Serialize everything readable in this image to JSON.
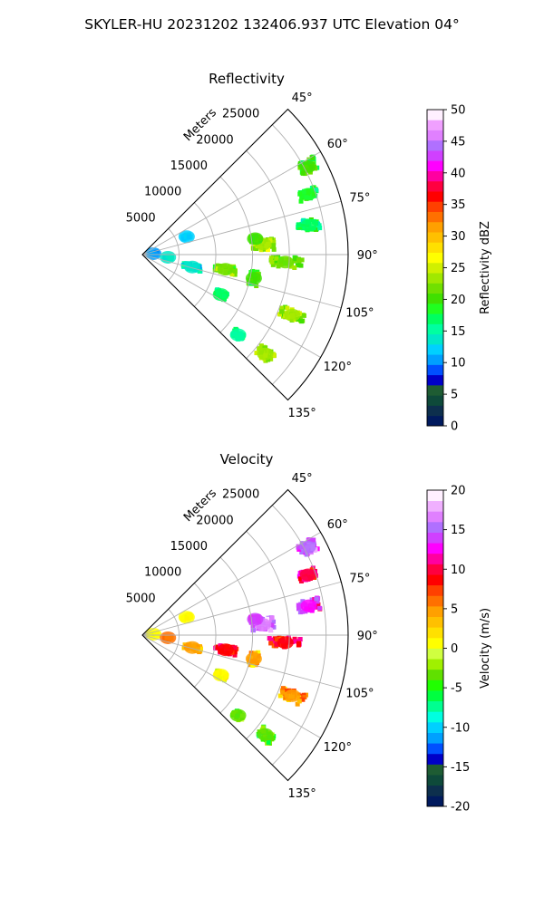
{
  "figure": {
    "title": "SKYLER-HU  20231202  132406.937 UTC Elevation 04°"
  },
  "chart_data": [
    {
      "type": "heatmap",
      "title": "Reflectivity",
      "radial_axis_label": "Meters",
      "radial_ticks": [
        5000,
        10000,
        15000,
        20000,
        25000
      ],
      "range_max_m": 28000,
      "azimuth_ticks": [
        "45°",
        "60°",
        "75°",
        "90°",
        "105°",
        "120°",
        "135°"
      ],
      "azimuth_range_deg": [
        45,
        135
      ],
      "grid": true,
      "colorbar": {
        "label": "Reflectivity dBZ",
        "min": 0,
        "max": 50,
        "ticks": [
          0,
          5,
          10,
          15,
          20,
          25,
          30,
          35,
          40,
          45,
          50
        ],
        "colors": [
          "#001a5e",
          "#0d2f4d",
          "#0e4a3a",
          "#1e5c33",
          "#0000c8",
          "#0050ff",
          "#00a0ff",
          "#00d0ff",
          "#00e8c8",
          "#00ffa0",
          "#00ff60",
          "#20ff20",
          "#40e000",
          "#70e000",
          "#a0e800",
          "#d0f000",
          "#ffff00",
          "#ffe000",
          "#ffc000",
          "#ffa000",
          "#ff7000",
          "#ff4000",
          "#ff0000",
          "#ff0040",
          "#ff00a0",
          "#ff00ff",
          "#d040ff",
          "#b070ff",
          "#e080ff",
          "#f0a0ff",
          "#fff0ff"
        ]
      },
      "echoes": [
        {
          "az": 62,
          "r": 25500,
          "dr": 2500,
          "daz": 4,
          "value": 20
        },
        {
          "az": 70,
          "r": 24000,
          "dr": 2500,
          "daz": 3,
          "value": 18
        },
        {
          "az": 80,
          "r": 23000,
          "dr": 3000,
          "daz": 4,
          "value": 17
        },
        {
          "az": 85,
          "r": 16500,
          "dr": 3000,
          "daz": 6,
          "value": 24
        },
        {
          "az": 82,
          "r": 15500,
          "dr": 1200,
          "daz": 3,
          "value": 20
        },
        {
          "az": 93,
          "r": 19500,
          "dr": 4500,
          "daz": 4,
          "value": 21
        },
        {
          "az": 100,
          "r": 11500,
          "dr": 3000,
          "daz": 5,
          "value": 22
        },
        {
          "az": 102,
          "r": 15500,
          "dr": 1200,
          "daz": 7,
          "value": 20
        },
        {
          "az": 112,
          "r": 22000,
          "dr": 3500,
          "daz": 4,
          "value": 23
        },
        {
          "az": 117,
          "r": 12000,
          "dr": 1500,
          "daz": 4,
          "value": 17
        },
        {
          "az": 129,
          "r": 21500,
          "dr": 2500,
          "daz": 4,
          "value": 24
        },
        {
          "az": 130,
          "r": 17000,
          "dr": 1500,
          "daz": 3,
          "value": 16
        },
        {
          "az": 104,
          "r": 7000,
          "dr": 2500,
          "daz": 6,
          "value": 13
        },
        {
          "az": 68,
          "r": 6500,
          "dr": 1200,
          "daz": 4,
          "value": 12
        },
        {
          "az": 85,
          "r": 1500,
          "dr": 1200,
          "daz": 10,
          "value": 10
        },
        {
          "az": 96,
          "r": 3500,
          "dr": 1000,
          "daz": 6,
          "value": 13
        }
      ]
    },
    {
      "type": "heatmap",
      "title": "Velocity",
      "radial_axis_label": "Meters",
      "radial_ticks": [
        5000,
        10000,
        15000,
        20000,
        25000
      ],
      "range_max_m": 28000,
      "azimuth_ticks": [
        "45°",
        "60°",
        "75°",
        "90°",
        "105°",
        "120°",
        "135°"
      ],
      "azimuth_range_deg": [
        45,
        135
      ],
      "grid": true,
      "colorbar": {
        "label": "Velocity (m/s)",
        "min": -20,
        "max": 20,
        "ticks": [
          -20,
          -15,
          -10,
          -5,
          0,
          5,
          10,
          15,
          20
        ],
        "colors": [
          "#001a5e",
          "#0d2f4d",
          "#0e4a3a",
          "#1e5c33",
          "#0000c8",
          "#0050ff",
          "#00a0ff",
          "#00d0ff",
          "#00ffe0",
          "#00ff90",
          "#00ff40",
          "#20ff00",
          "#60e000",
          "#a0f000",
          "#d0ff40",
          "#ffff00",
          "#ffe000",
          "#ffc000",
          "#ffa000",
          "#ff7000",
          "#ff4000",
          "#ff0000",
          "#ff0040",
          "#ff00a0",
          "#ff00ff",
          "#d040ff",
          "#b070ff",
          "#e080ff",
          "#f0b0ff",
          "#fff0ff"
        ]
      },
      "echoes": [
        {
          "az": 62,
          "r": 25500,
          "dr": 2500,
          "daz": 4,
          "value": 15
        },
        {
          "az": 70,
          "r": 24000,
          "dr": 2500,
          "daz": 3,
          "value": 10
        },
        {
          "az": 80,
          "r": 23000,
          "dr": 3000,
          "daz": 4,
          "value": 13
        },
        {
          "az": 85,
          "r": 16500,
          "dr": 3000,
          "daz": 6,
          "value": 16
        },
        {
          "az": 82,
          "r": 15500,
          "dr": 1200,
          "daz": 3,
          "value": 14
        },
        {
          "az": 93,
          "r": 19500,
          "dr": 4500,
          "daz": 4,
          "value": 9
        },
        {
          "az": 100,
          "r": 11500,
          "dr": 3000,
          "daz": 5,
          "value": 9
        },
        {
          "az": 102,
          "r": 15500,
          "dr": 1200,
          "daz": 7,
          "value": 4
        },
        {
          "az": 112,
          "r": 22000,
          "dr": 3500,
          "daz": 4,
          "value": 5
        },
        {
          "az": 117,
          "r": 12000,
          "dr": 1500,
          "daz": 4,
          "value": 1
        },
        {
          "az": 129,
          "r": 21500,
          "dr": 2500,
          "daz": 4,
          "value": -4
        },
        {
          "az": 130,
          "r": 17000,
          "dr": 1500,
          "daz": 3,
          "value": -3
        },
        {
          "az": 104,
          "r": 7000,
          "dr": 2500,
          "daz": 6,
          "value": 5
        },
        {
          "az": 68,
          "r": 6500,
          "dr": 1200,
          "daz": 4,
          "value": 1
        },
        {
          "az": 85,
          "r": 1500,
          "dr": 1200,
          "daz": 10,
          "value": 0
        },
        {
          "az": 96,
          "r": 3500,
          "dr": 1000,
          "daz": 6,
          "value": 6
        }
      ]
    }
  ]
}
